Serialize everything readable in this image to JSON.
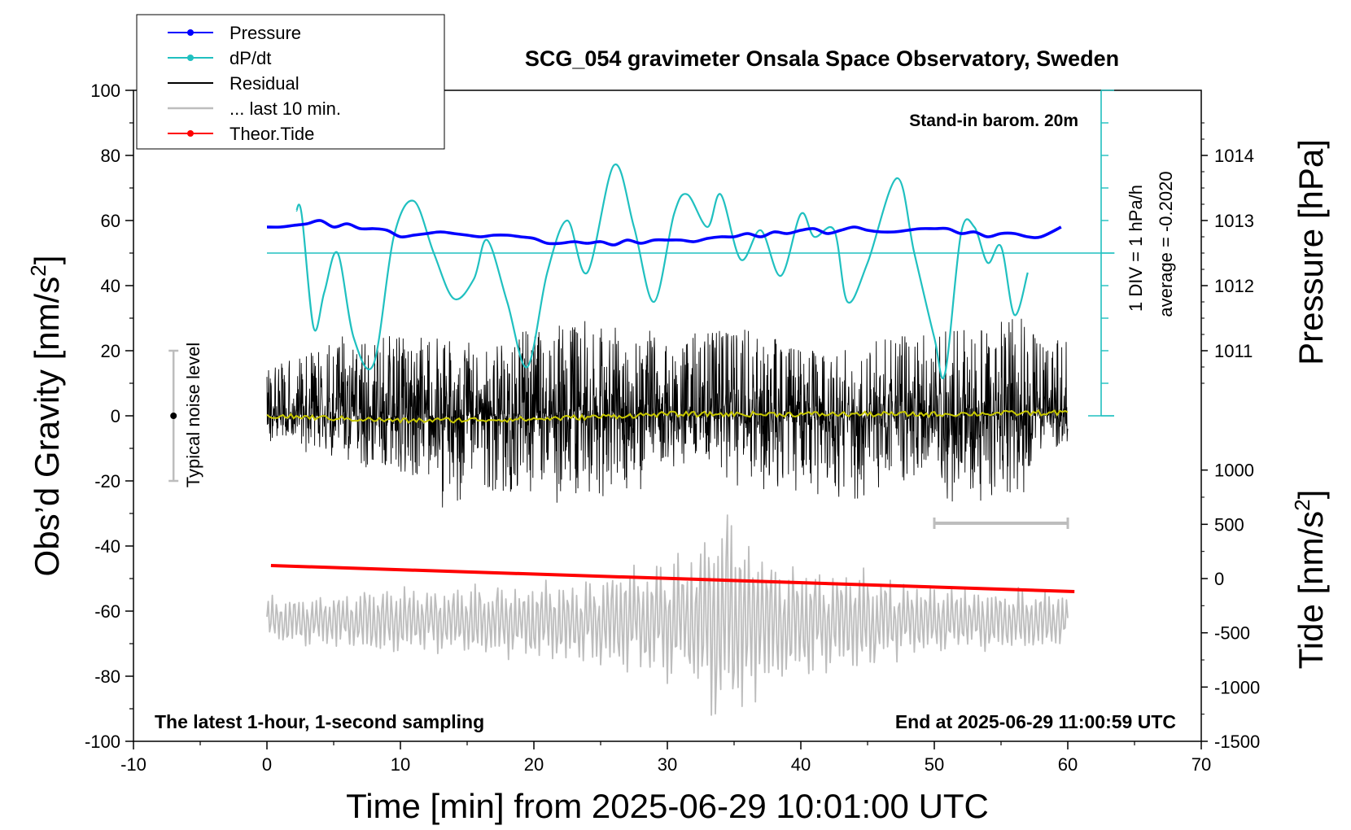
{
  "chart_data": {
    "type": "line",
    "title": "SCG_054 gravimeter Onsala Space Observatory, Sweden",
    "xlabel": "Time [min] from 2025-06-29 10:01:00 UTC",
    "ylabel_main": "Obs’d Gravity [nm/s",
    "ylabel_main_sup": "2",
    "ylabel_main_end": "]",
    "ylabel_pressure": "Pressure [hPa]",
    "ylabel_tide": "Tide [nm/s",
    "ylabel_tide_sup": "2",
    "ylabel_tide_end": "]",
    "xlim": [
      -10,
      70
    ],
    "ylim": [
      -100,
      100
    ],
    "x_ticks": [
      -10,
      0,
      10,
      20,
      30,
      40,
      50,
      60,
      70
    ],
    "x_tick_labels": [
      "-10",
      "0",
      "10",
      "20",
      "30",
      "40",
      "50",
      "60",
      "70"
    ],
    "y_ticks": [
      100,
      80,
      60,
      40,
      20,
      0,
      -20,
      -40,
      -60,
      -80,
      -100
    ],
    "y_tick_labels": [
      "100",
      "80",
      "60",
      "40",
      "20",
      "0",
      "-20",
      "-40",
      "-60",
      "-80",
      "-100"
    ],
    "pressure_ticks": [
      1014,
      1013,
      1012,
      1011
    ],
    "pressure_tick_labels": [
      "1014",
      "1013",
      "1012",
      "1011"
    ],
    "pressure_scale": {
      "ref_hpa": 1013,
      "ref_y": 60,
      "y_per_hpa": 20
    },
    "tide_ticks": [
      1000,
      500,
      0,
      -500,
      -1000,
      -1500
    ],
    "tide_tick_labels": [
      "1000",
      "500",
      "0",
      "-500",
      "-1000",
      "-1500"
    ],
    "tide_scale": {
      "ref_nms2": 0,
      "ref_y": -50,
      "y_per_nms2": 0.0333333
    },
    "legend": [
      {
        "label": "Pressure",
        "color": "#0000ff",
        "marker": true
      },
      {
        "label": "dP/dt",
        "color": "#20c0c0",
        "marker": true
      },
      {
        "label": "Residual",
        "color": "#000000",
        "marker": false
      },
      {
        "label": "... last 10 min.",
        "color": "#bdbdbd",
        "marker": false
      },
      {
        "label": "Theor.Tide",
        "color": "#ff0000",
        "marker": true
      }
    ],
    "series": [
      {
        "name": "Pressure",
        "color": "#0000ff",
        "x": [
          0,
          1,
          2,
          3,
          4,
          5,
          6,
          7,
          8,
          9,
          10,
          11,
          12,
          13,
          14,
          15,
          16,
          17,
          18,
          19,
          20,
          21,
          22,
          23,
          24,
          25,
          26,
          27,
          28,
          29,
          30,
          31,
          32,
          33,
          34,
          35,
          36,
          37,
          38,
          39,
          40,
          41,
          42,
          43,
          44,
          45,
          46,
          47,
          48,
          49,
          50,
          51,
          52,
          53,
          54,
          55,
          56,
          57,
          58,
          59.5
        ],
        "y": [
          58,
          58,
          58.5,
          59,
          60,
          58,
          59,
          57.5,
          57.5,
          57,
          55,
          55.5,
          56,
          56.5,
          56,
          55.5,
          55,
          55.5,
          55.5,
          55,
          54.5,
          53,
          53,
          53.5,
          53,
          53.5,
          52.5,
          54,
          53,
          54,
          54,
          54,
          53.5,
          54.5,
          55,
          55,
          56,
          55,
          56.5,
          56,
          57,
          57.5,
          56,
          57,
          58,
          57,
          56.5,
          56.5,
          57,
          57.5,
          57.5,
          57.5,
          56,
          56.5,
          55,
          56,
          56,
          55,
          55,
          58
        ]
      },
      {
        "name": "dP/dt",
        "color": "#20c0c0",
        "baseline_y": 50,
        "x": [
          2.2,
          2.6,
          3.5,
          4.3,
          5.3,
          6.5,
          8,
          9.5,
          11,
          12.5,
          14,
          15.5,
          16.5,
          18,
          19.5,
          21,
          22.5,
          24,
          26,
          27.5,
          29,
          30.5,
          31.5,
          33,
          34,
          35.5,
          37,
          38.5,
          40,
          41,
          42.5,
          43.5,
          45,
          47.2,
          48.5,
          50,
          50.8,
          52,
          53,
          54,
          55,
          56,
          57
        ],
        "y": [
          63,
          62,
          27,
          38,
          50,
          24,
          16,
          55,
          66,
          50,
          36,
          42,
          54,
          35,
          15,
          44,
          60,
          44,
          77,
          58,
          35,
          62,
          68,
          58,
          68,
          48,
          57,
          43,
          62,
          55,
          57,
          35,
          47,
          73,
          50,
          24,
          13,
          56,
          58,
          47,
          52,
          31,
          44
        ]
      },
      {
        "name": "Residual",
        "color": "#000000",
        "xlim": [
          0,
          60
        ],
        "peak_envelope": [
          [
            0,
            -8,
            14
          ],
          [
            5,
            -14,
            25
          ],
          [
            10,
            -22,
            25
          ],
          [
            16.5,
            -35,
            22
          ],
          [
            20,
            -25,
            27
          ],
          [
            25,
            -30,
            30
          ],
          [
            30,
            -18,
            25
          ],
          [
            36,
            -22,
            27
          ],
          [
            41,
            -27,
            20
          ],
          [
            45,
            -26,
            25
          ],
          [
            50,
            -25,
            26
          ],
          [
            54,
            -30,
            28
          ],
          [
            55.8,
            -34,
            36
          ],
          [
            58,
            -10,
            22
          ],
          [
            60,
            -10,
            24
          ]
        ]
      },
      {
        "name": "Residual trend",
        "color": "#c8c800",
        "x": [
          0,
          10,
          20,
          30,
          40,
          50,
          60
        ],
        "y": [
          0,
          -1.5,
          -1,
          0.5,
          0.5,
          0.5,
          1
        ]
      },
      {
        "name": "Theor.Tide",
        "color": "#ff0000",
        "x": [
          0.3,
          60.5
        ],
        "y": [
          -46,
          -54
        ]
      },
      {
        "name": "... last 10 min.",
        "color": "#bdbdbd",
        "xlim": [
          0,
          60
        ],
        "center_y": -63,
        "amplitude_envelope": [
          [
            0,
            8
          ],
          [
            10,
            12
          ],
          [
            20,
            13
          ],
          [
            27,
            18
          ],
          [
            32,
            25
          ],
          [
            34.5,
            40
          ],
          [
            38,
            22
          ],
          [
            45,
            17
          ],
          [
            50,
            12
          ],
          [
            60,
            10
          ]
        ]
      }
    ],
    "annotations": {
      "stand_in": "Stand-in barom. 20m",
      "dp_scale_1": "1 DIV = 1 hPa/h",
      "dp_scale_2": "average = -0.2020",
      "typical_noise": "Typical noise level",
      "bottom_left": "The latest 1-hour, 1-second sampling",
      "bottom_right": "End at 2025-06-29 11:00:59 UTC",
      "window_bar": [
        50,
        60
      ],
      "window_bar_y": -33
    }
  }
}
